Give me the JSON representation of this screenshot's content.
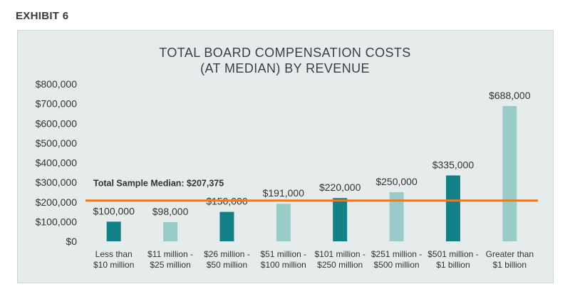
{
  "exhibit_label": "EXHIBIT 6",
  "colors": {
    "dark_teal": "#137f86",
    "light_teal": "#99ccc9",
    "median_line": "#ea7a25",
    "panel_bg": "#e6ecec"
  },
  "chart_data": {
    "type": "bar",
    "title_line1": "TOTAL BOARD COMPENSATION COSTS",
    "title_line2": "(AT MEDIAN) BY REVENUE",
    "xlabel": "",
    "ylabel": "",
    "ylim": [
      0,
      800000
    ],
    "y_ticks": [
      0,
      100000,
      200000,
      300000,
      400000,
      500000,
      600000,
      700000,
      800000
    ],
    "y_tick_labels": [
      "$0",
      "$100,000",
      "$200,000",
      "$300,000",
      "$400,000",
      "$500,000",
      "$600,000",
      "$700,000",
      "$800,000"
    ],
    "categories": [
      [
        "Less than",
        "$10 million"
      ],
      [
        "$11 million -",
        "$25 million"
      ],
      [
        "$26 million -",
        "$50 million"
      ],
      [
        "$51 million -",
        "$100 million"
      ],
      [
        "$101 million -",
        "$250 million"
      ],
      [
        "$251 million -",
        "$500 million"
      ],
      [
        "$501 million -",
        "$1 billion"
      ],
      [
        "Greater than",
        "$1 billion"
      ]
    ],
    "values": [
      100000,
      98000,
      150000,
      191000,
      220000,
      250000,
      335000,
      688000
    ],
    "value_labels": [
      "$100,000",
      "$98,000",
      "$150,000",
      "$191,000",
      "$220,000",
      "$250,000",
      "$335,000",
      "$688,000"
    ],
    "bar_colors": [
      "dark",
      "light",
      "dark",
      "light",
      "dark",
      "light",
      "dark",
      "light"
    ],
    "median": {
      "value": 207375,
      "label": "Total Sample Median: $207,375"
    },
    "grid": false,
    "legend": "none"
  }
}
